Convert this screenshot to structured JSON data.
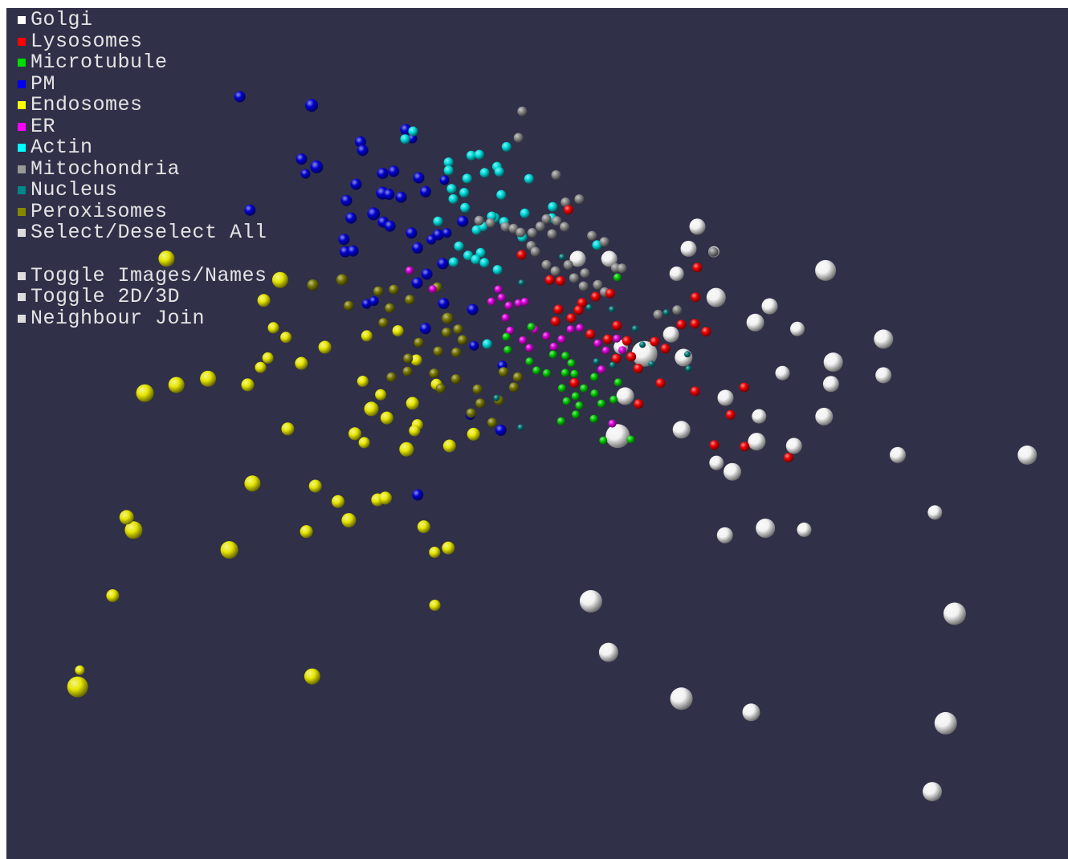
{
  "background": "#313049",
  "legend": {
    "categories": [
      {
        "label": "Golgi",
        "color": "#ffffff",
        "icon": "square-swatch"
      },
      {
        "label": "Lysosomes",
        "color": "#ff0000",
        "icon": "square-swatch"
      },
      {
        "label": "Microtubule",
        "color": "#00dd00",
        "icon": "square-swatch"
      },
      {
        "label": "PM",
        "color": "#0000ee",
        "icon": "square-swatch"
      },
      {
        "label": "Endosomes",
        "color": "#ffff00",
        "icon": "square-swatch"
      },
      {
        "label": "ER",
        "color": "#ff00ff",
        "icon": "square-swatch"
      },
      {
        "label": "Actin",
        "color": "#00ffff",
        "icon": "square-swatch"
      },
      {
        "label": "Mitochondria",
        "color": "#999999",
        "icon": "square-swatch"
      },
      {
        "label": "Nucleus",
        "color": "#008888",
        "icon": "square-swatch"
      },
      {
        "label": "Peroxisomes",
        "color": "#888800",
        "icon": "square-swatch"
      }
    ],
    "select_all": {
      "label": "Select/Deselect All",
      "color": "#dddddd"
    },
    "controls": [
      {
        "label": "Toggle Images/Names",
        "color": "#dddddd"
      },
      {
        "label": "Toggle 2D/3D",
        "color": "#dddddd"
      },
      {
        "label": "Neighbour Join",
        "color": "#dddddd"
      }
    ]
  },
  "sphere_colors": {
    "golgi": "#f2f2f2",
    "lysosomes": "#ee0000",
    "microtubule": "#00cc00",
    "pm": "#0000cc",
    "endosomes": "#e6e600",
    "er": "#dd00dd",
    "actin": "#00dddd",
    "mitochondria": "#888888",
    "nucleus": "#007777",
    "peroxisomes": "#777700"
  }
}
